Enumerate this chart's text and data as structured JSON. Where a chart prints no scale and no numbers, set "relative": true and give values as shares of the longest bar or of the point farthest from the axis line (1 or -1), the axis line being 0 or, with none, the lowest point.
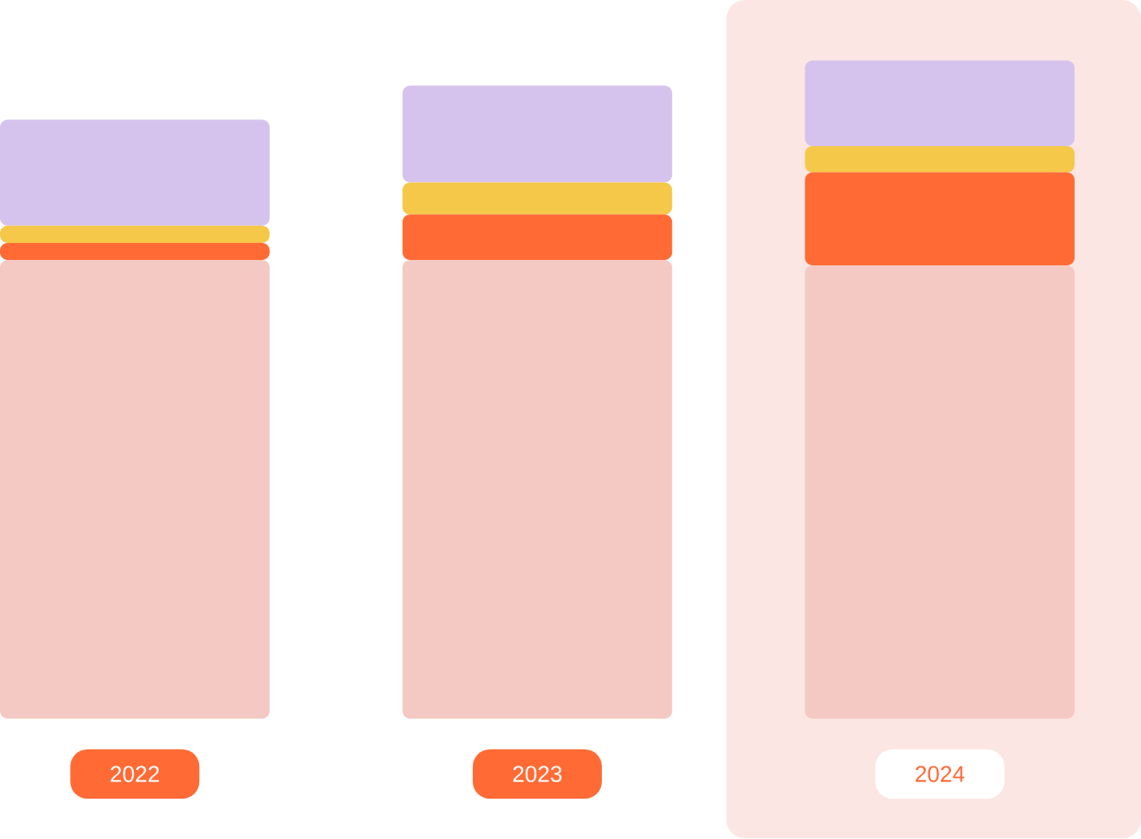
{
  "chart_data": {
    "type": "bar",
    "stacked": true,
    "relative": true,
    "categories": [
      "2022",
      "2023",
      "2024"
    ],
    "series": [
      {
        "color": "#f5c9c3",
        "values": [
          0.697,
          0.697,
          0.689
        ]
      },
      {
        "color": "#ff6a35",
        "values": [
          0.026,
          0.069,
          0.141
        ]
      },
      {
        "color": "#f5c84a",
        "values": [
          0.026,
          0.049,
          0.04
        ]
      },
      {
        "color": "#d5c3ee",
        "values": [
          0.161,
          0.147,
          0.13
        ]
      }
    ],
    "bands": [
      {
        "axis": "x",
        "from": "2024",
        "to": "2024",
        "color": "#fbe6e3"
      }
    ]
  }
}
